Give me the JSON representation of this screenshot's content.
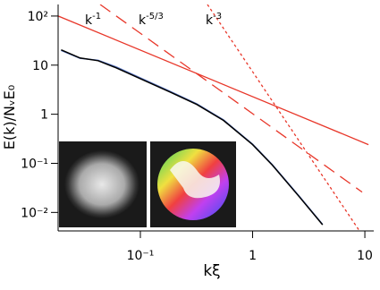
{
  "chart_data": {
    "type": "line",
    "xlabel": "kξ",
    "ylabel": "E(k)/NᵥE₀",
    "xscale": "log",
    "yscale": "log",
    "xlim": [
      0.0185,
      12
    ],
    "ylim": [
      0.0042,
      172
    ],
    "xticks": [
      {
        "value": 0.1,
        "label": "10⁻¹"
      },
      1,
      10
    ],
    "yticks": [
      {
        "value": 0.01,
        "label": "10⁻²"
      },
      {
        "value": 0.1,
        "label": "10⁻¹"
      },
      1,
      10,
      {
        "value": 100,
        "label": "10²"
      }
    ],
    "series": [
      {
        "color": "#5a78c8",
        "style": "solid",
        "x": [
          0.0197,
          0.029,
          0.042,
          0.061,
          0.1,
          0.183,
          0.318,
          0.55,
          1,
          1.5,
          2.6,
          4.2
        ],
        "values": [
          20,
          13.8,
          12.6,
          9.2,
          5.5,
          2.95,
          1.62,
          0.77,
          0.245,
          0.094,
          0.0215,
          0.0057
        ]
      },
      {
        "color": "#000000",
        "style": "solid",
        "x": [
          0.0197,
          0.029,
          0.042,
          0.061,
          0.1,
          0.183,
          0.318,
          0.55,
          1,
          1.5,
          2.6,
          4.2
        ],
        "values": [
          20.5,
          14,
          12.3,
          8.8,
          5.3,
          2.85,
          1.58,
          0.75,
          0.24,
          0.092,
          0.021,
          0.0056
        ]
      },
      {
        "name": "k",
        "exponent": "-1",
        "color": "#e8372a",
        "style": "solid",
        "x": [
          0.0185,
          10.76
        ],
        "values": [
          100,
          0.24
        ]
      },
      {
        "name": "k",
        "exponent": "-5/3",
        "color": "#e8372a",
        "style": "dashed",
        "x": [
          0.0438,
          9.46
        ],
        "values": [
          172,
          0.026
        ]
      },
      {
        "name": "k",
        "exponent": "-3",
        "color": "#e8372a",
        "style": "dotted",
        "x": [
          0.396,
          8.96
        ],
        "values": [
          172,
          0.0042
        ]
      }
    ]
  }
}
